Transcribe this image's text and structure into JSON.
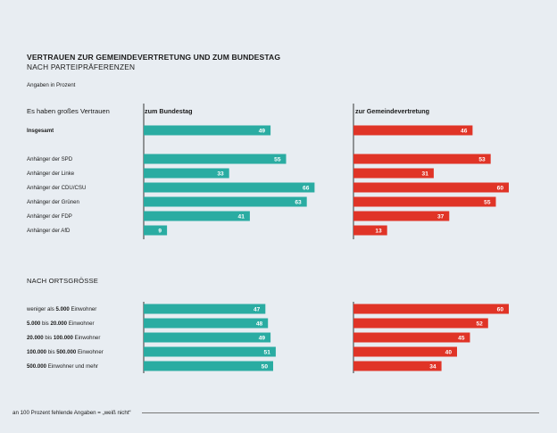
{
  "title": "VERTRAUEN ZUR GEMEINDEVERTRETUNG UND ZUM BUNDESTAG",
  "subtitle": "NACH PARTEIPRÄFERENZEN",
  "units": "Angaben in Prozent",
  "row_header": "Es haben großes Vertrauen",
  "section2_title": "NACH ORTSGRÖSSE",
  "footnote": "an 100 Prozent fehlende Angaben = „weiß nicht“",
  "colors": {
    "bundestag": "#2aaca2",
    "gemeinde": "#e03427",
    "background": "#e8edf2"
  },
  "chart_data": {
    "type": "bar",
    "orientation": "horizontal",
    "xlim": [
      0,
      100
    ],
    "series": [
      {
        "name": "zum Bundestag",
        "color": "#2aaca2"
      },
      {
        "name": "zur Gemeindevertretung",
        "color": "#e03427"
      }
    ],
    "groups": [
      {
        "title": "",
        "rows": [
          {
            "label": [
              {
                "t": "Insgesamt",
                "b": true
              }
            ],
            "values": [
              49,
              46
            ]
          }
        ]
      },
      {
        "title": "",
        "rows": [
          {
            "label": [
              {
                "t": "Anhänger der SPD",
                "b": false
              }
            ],
            "values": [
              55,
              53
            ]
          },
          {
            "label": [
              {
                "t": "Anhänger der Linke",
                "b": false
              }
            ],
            "values": [
              33,
              31
            ]
          },
          {
            "label": [
              {
                "t": "Anhänger der CDU/CSU",
                "b": false
              }
            ],
            "values": [
              66,
              60
            ]
          },
          {
            "label": [
              {
                "t": "Anhänger der Grünen",
                "b": false
              }
            ],
            "values": [
              63,
              55
            ]
          },
          {
            "label": [
              {
                "t": "Anhänger der FDP",
                "b": false
              }
            ],
            "values": [
              41,
              37
            ]
          },
          {
            "label": [
              {
                "t": "Anhänger der AfD",
                "b": false
              }
            ],
            "values": [
              9,
              13
            ]
          }
        ]
      },
      {
        "title": "NACH ORTSGRÖSSE",
        "rows": [
          {
            "label": [
              {
                "t": "weniger als ",
                "b": false
              },
              {
                "t": "5.000",
                "b": true
              },
              {
                "t": " Einwohner",
                "b": false
              }
            ],
            "values": [
              47,
              60
            ]
          },
          {
            "label": [
              {
                "t": "5.000",
                "b": true
              },
              {
                "t": " bis ",
                "b": false
              },
              {
                "t": "20.000",
                "b": true
              },
              {
                "t": " Einwohner",
                "b": false
              }
            ],
            "values": [
              48,
              52
            ]
          },
          {
            "label": [
              {
                "t": "20.000",
                "b": true
              },
              {
                "t": " bis ",
                "b": false
              },
              {
                "t": "100.000",
                "b": true
              },
              {
                "t": " Einwohner",
                "b": false
              }
            ],
            "values": [
              49,
              45
            ]
          },
          {
            "label": [
              {
                "t": "100.000",
                "b": true
              },
              {
                "t": " bis ",
                "b": false
              },
              {
                "t": "500.000",
                "b": true
              },
              {
                "t": " Einwohner",
                "b": false
              }
            ],
            "values": [
              51,
              40
            ]
          },
          {
            "label": [
              {
                "t": "500.000",
                "b": true
              },
              {
                "t": " Einwohner und mehr",
                "b": false
              }
            ],
            "values": [
              50,
              34
            ]
          }
        ]
      }
    ]
  }
}
